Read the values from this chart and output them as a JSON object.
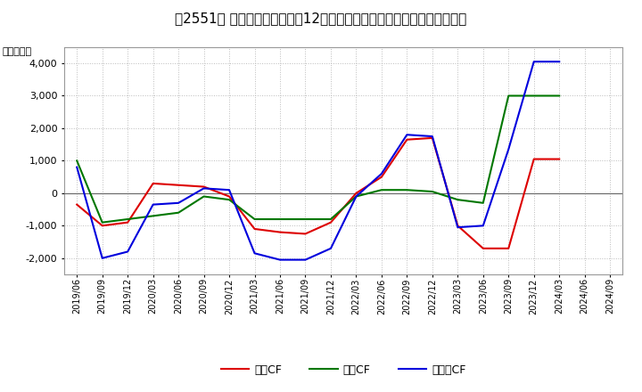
{
  "title": "、2551、 キャッシュフローの12か月移動合計の対前年同期増減額の推移",
  "title_raw": "[■]2551[■] キャッシュフローの12か月移動合計の対前年同期増減額の推移",
  "ylabel": "（百万円）",
  "background_color": "#ffffff",
  "plot_background_color": "#ffffff",
  "grid_color": "#bbbbbb",
  "x_labels": [
    "2019/06",
    "2019/09",
    "2019/12",
    "2020/03",
    "2020/06",
    "2020/09",
    "2020/12",
    "2021/03",
    "2021/06",
    "2021/09",
    "2021/12",
    "2022/03",
    "2022/06",
    "2022/09",
    "2022/12",
    "2023/03",
    "2023/06",
    "2023/09",
    "2023/12",
    "2024/03",
    "2024/06",
    "2024/09"
  ],
  "operating_cf": [
    -350,
    -1000,
    -900,
    300,
    250,
    200,
    -100,
    -1100,
    -1200,
    -1250,
    -900,
    0,
    500,
    1650,
    1700,
    -1000,
    -1700,
    -1700,
    1050,
    1050,
    null,
    null
  ],
  "investing_cf": [
    1000,
    -900,
    -800,
    -700,
    -600,
    -100,
    -200,
    -800,
    -800,
    -800,
    -800,
    -100,
    100,
    100,
    50,
    -200,
    -300,
    3000,
    3000,
    3000,
    null,
    null
  ],
  "free_cf": [
    800,
    -2000,
    -1800,
    -350,
    -300,
    150,
    100,
    -1850,
    -2050,
    -2050,
    -1700,
    -100,
    600,
    1800,
    1750,
    -1050,
    -1000,
    1350,
    4050,
    4050,
    null,
    null
  ],
  "ylim": [
    -2500,
    4500
  ],
  "yticks": [
    -2000,
    -1000,
    0,
    1000,
    2000,
    3000,
    4000
  ],
  "operating_color": "#dd0000",
  "investing_color": "#007700",
  "free_color": "#0000dd",
  "line_width": 1.5,
  "title_fontsize": 11,
  "legend_labels": [
    "営業CF",
    "投資CF",
    "フリーCF"
  ]
}
